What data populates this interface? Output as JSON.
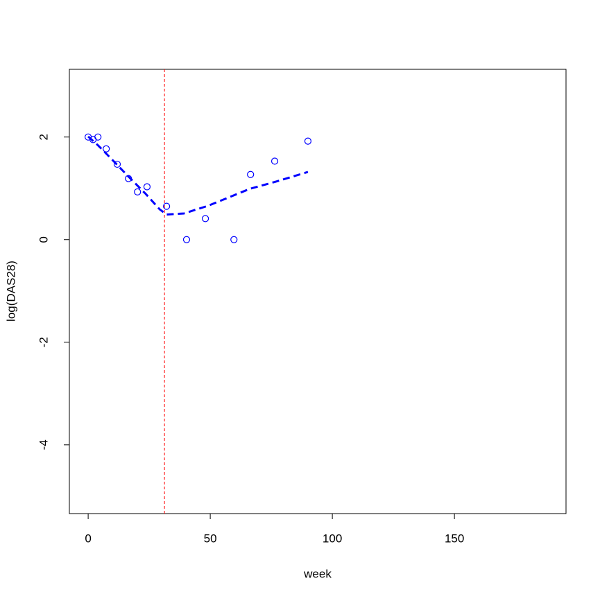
{
  "chart_data": {
    "type": "scatter",
    "x_label": "week",
    "y_label": "log(DAS28)",
    "xlim": [
      -7.7,
      195.7
    ],
    "ylim": [
      -5.34,
      3.32
    ],
    "xticks": [
      0,
      50,
      100,
      150
    ],
    "yticks": [
      -4,
      -2,
      0,
      2
    ],
    "series": [
      {
        "style": "points",
        "color": "#0000ff",
        "x": [
          0,
          2,
          4,
          7.4,
          11.9,
          16.5,
          20.2,
          24.1,
          32.1,
          40.3,
          48,
          59.7,
          66.5,
          76.4,
          90
        ],
        "values": [
          2.0,
          1.95,
          2.0,
          1.77,
          1.47,
          1.19,
          0.93,
          1.03,
          0.65,
          0.0,
          0.41,
          0.0,
          1.27,
          1.53,
          1.92
        ]
      },
      {
        "style": "dashed-line",
        "color": "#0000ff",
        "x": [
          0,
          4,
          9.4,
          16.5,
          23.6,
          29.3,
          32.1,
          39.2,
          49.1,
          66.2,
          77.6,
          90
        ],
        "values": [
          2.01,
          1.84,
          1.58,
          1.23,
          0.89,
          0.59,
          0.49,
          0.51,
          0.66,
          0.99,
          1.14,
          1.32
        ]
      }
    ],
    "vline": 31.25,
    "vline_color": "#ff0000"
  }
}
